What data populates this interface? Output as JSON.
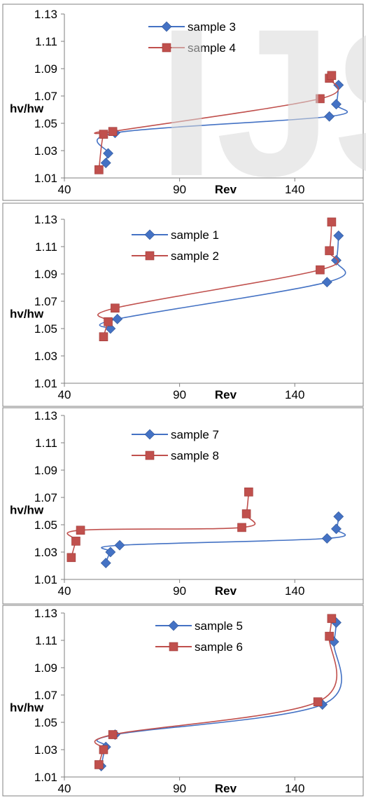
{
  "watermark": "IJS",
  "chart_data": [
    {
      "type": "line",
      "xlabel": "Rev",
      "ylabel": "hv/hw",
      "xlim": [
        40,
        170
      ],
      "ylim": [
        1.01,
        1.13
      ],
      "xticks": [
        "40",
        "90",
        "140"
      ],
      "yticks": [
        "1.01",
        "1.03",
        "1.05",
        "1.07",
        "1.09",
        "1.11",
        "1.13"
      ],
      "legend_position": "top-right",
      "series": [
        {
          "name": "sample 3",
          "color": "#4472C4",
          "marker": "diamond",
          "points": [
            [
              58,
              1.021
            ],
            [
              59,
              1.028
            ],
            [
              62,
              1.043
            ],
            [
              155,
              1.055
            ],
            [
              158,
              1.064
            ],
            [
              159,
              1.078
            ]
          ]
        },
        {
          "name": "sample 4",
          "color": "#C0504D",
          "marker": "square",
          "points": [
            [
              55,
              1.016
            ],
            [
              57,
              1.042
            ],
            [
              61,
              1.044
            ],
            [
              151,
              1.068
            ],
            [
              155,
              1.083
            ],
            [
              156,
              1.085
            ]
          ]
        }
      ]
    },
    {
      "type": "line",
      "xlabel": "Rev",
      "ylabel": "hv/hw",
      "xlim": [
        40,
        170
      ],
      "ylim": [
        1.01,
        1.13
      ],
      "xticks": [
        "40",
        "90",
        "140"
      ],
      "yticks": [
        "1.01",
        "1.03",
        "1.05",
        "1.07",
        "1.09",
        "1.11",
        "1.13"
      ],
      "legend_position": "top-center",
      "series": [
        {
          "name": "sample 1",
          "color": "#4472C4",
          "marker": "diamond",
          "points": [
            [
              60,
              1.05
            ],
            [
              63,
              1.057
            ],
            [
              154,
              1.084
            ],
            [
              158,
              1.1
            ],
            [
              159,
              1.118
            ]
          ]
        },
        {
          "name": "sample 2",
          "color": "#C0504D",
          "marker": "square",
          "points": [
            [
              57,
              1.044
            ],
            [
              59,
              1.055
            ],
            [
              62,
              1.065
            ],
            [
              151,
              1.093
            ],
            [
              155,
              1.107
            ],
            [
              156,
              1.128
            ]
          ]
        }
      ]
    },
    {
      "type": "line",
      "xlabel": "Rev",
      "ylabel": "hv/hw",
      "xlim": [
        40,
        170
      ],
      "ylim": [
        1.01,
        1.13
      ],
      "xticks": [
        "40",
        "90",
        "140"
      ],
      "yticks": [
        "1.01",
        "1.03",
        "1.05",
        "1.07",
        "1.09",
        "1.11",
        "1.13"
      ],
      "legend_position": "top-center",
      "series": [
        {
          "name": "sample 7",
          "color": "#4472C4",
          "marker": "diamond",
          "points": [
            [
              58,
              1.022
            ],
            [
              60,
              1.03
            ],
            [
              64,
              1.035
            ],
            [
              154,
              1.04
            ],
            [
              158,
              1.047
            ],
            [
              159,
              1.056
            ]
          ]
        },
        {
          "name": "sample 8",
          "color": "#C0504D",
          "marker": "square",
          "points": [
            [
              43,
              1.026
            ],
            [
              45,
              1.038
            ],
            [
              47,
              1.046
            ],
            [
              117,
              1.048
            ],
            [
              119,
              1.058
            ],
            [
              120,
              1.074
            ]
          ]
        }
      ]
    },
    {
      "type": "line",
      "xlabel": "Rev",
      "ylabel": "hv/hw",
      "xlim": [
        40,
        170
      ],
      "ylim": [
        1.01,
        1.13
      ],
      "xticks": [
        "40",
        "90",
        "140"
      ],
      "yticks": [
        "1.01",
        "1.03",
        "1.05",
        "1.07",
        "1.09",
        "1.11",
        "1.13"
      ],
      "legend_position": "top-right",
      "series": [
        {
          "name": "sample 5",
          "color": "#4472C4",
          "marker": "diamond",
          "points": [
            [
              56,
              1.018
            ],
            [
              58,
              1.032
            ],
            [
              62,
              1.041
            ],
            [
              152,
              1.063
            ],
            [
              157,
              1.109
            ],
            [
              158,
              1.123
            ]
          ]
        },
        {
          "name": "sample 6",
          "color": "#C0504D",
          "marker": "square",
          "points": [
            [
              55,
              1.019
            ],
            [
              57,
              1.03
            ],
            [
              61,
              1.041
            ],
            [
              150,
              1.065
            ],
            [
              155,
              1.113
            ],
            [
              156,
              1.126
            ]
          ]
        }
      ]
    }
  ]
}
